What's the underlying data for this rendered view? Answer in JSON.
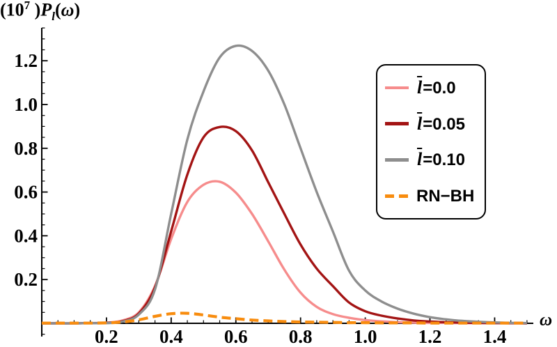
{
  "title": {
    "p1": "(10",
    "sup": "7",
    "p2": " )",
    "P": "P",
    "sub": "l",
    "p3": "(",
    "omega": "ω",
    "p4": ")"
  },
  "axes": {
    "x_label": "ω",
    "x_ticks": [
      {
        "v": 0.2,
        "label": "0.2"
      },
      {
        "v": 0.4,
        "label": "0.4"
      },
      {
        "v": 0.6,
        "label": "0.6"
      },
      {
        "v": 0.8,
        "label": "0.8"
      },
      {
        "v": 1.0,
        "label": "1.0"
      },
      {
        "v": 1.2,
        "label": "1.2"
      },
      {
        "v": 1.4,
        "label": "1.4"
      }
    ],
    "y_ticks": [
      {
        "v": 0.2,
        "label": "0.2"
      },
      {
        "v": 0.4,
        "label": "0.4"
      },
      {
        "v": 0.6,
        "label": "0.6"
      },
      {
        "v": 0.8,
        "label": "0.8"
      },
      {
        "v": 1.0,
        "label": "1.0"
      },
      {
        "v": 1.2,
        "label": "1.2"
      }
    ],
    "axis_color": "#000000"
  },
  "legend": {
    "items": [
      {
        "series_index": 0,
        "var": "l",
        "rest": "=0.0"
      },
      {
        "series_index": 1,
        "var": "l",
        "rest": "=0.05"
      },
      {
        "series_index": 2,
        "var": "l",
        "rest": "=0.10"
      },
      {
        "series_index": 3,
        "var": "",
        "rest": "RN−BH"
      }
    ]
  },
  "chart_data": {
    "type": "line",
    "title": "(10^7) P_l(ω)",
    "xlabel": "ω",
    "ylabel": "(10^7) P_l(ω)",
    "xlim": [
      0,
      1.52
    ],
    "ylim": [
      0,
      1.35
    ],
    "grid": false,
    "legend_position": "upper right",
    "x": [
      0.0,
      0.05,
      0.1,
      0.15,
      0.2,
      0.25,
      0.3,
      0.35,
      0.4,
      0.45,
      0.5,
      0.55,
      0.6,
      0.65,
      0.7,
      0.75,
      0.8,
      0.85,
      0.9,
      0.95,
      1.0,
      1.05,
      1.1,
      1.15,
      1.2,
      1.25,
      1.3,
      1.35,
      1.4,
      1.45,
      1.5
    ],
    "series": [
      {
        "name": "l̄=0.0",
        "color": "#F68C8C",
        "style": "solid",
        "peak": {
          "x": 0.53,
          "y": 0.65
        },
        "values": [
          0,
          0,
          0,
          0.001,
          0.003,
          0.013,
          0.05,
          0.17,
          0.385,
          0.555,
          0.633,
          0.647,
          0.597,
          0.5,
          0.375,
          0.245,
          0.14,
          0.075,
          0.042,
          0.025,
          0.015,
          0.009,
          0.005,
          0.003,
          0.002,
          0.002,
          0.001,
          0.001,
          0.001,
          0,
          0
        ]
      },
      {
        "name": "l̄=0.05",
        "color": "#A31414",
        "style": "solid",
        "peak": {
          "x": 0.565,
          "y": 0.9
        },
        "values": [
          0,
          0,
          0,
          0.001,
          0.002,
          0.01,
          0.045,
          0.165,
          0.42,
          0.68,
          0.85,
          0.897,
          0.878,
          0.79,
          0.645,
          0.5,
          0.36,
          0.25,
          0.17,
          0.095,
          0.055,
          0.035,
          0.022,
          0.013,
          0.008,
          0.005,
          0.003,
          0.002,
          0.001,
          0.001,
          0
        ]
      },
      {
        "name": "l̄=0.10",
        "color": "#8E8E8E",
        "style": "solid",
        "peak": {
          "x": 0.61,
          "y": 1.27
        },
        "values": [
          0,
          0,
          0,
          0.001,
          0.001,
          0.008,
          0.04,
          0.155,
          0.5,
          0.84,
          1.06,
          1.215,
          1.268,
          1.245,
          1.155,
          1.0,
          0.8,
          0.6,
          0.42,
          0.24,
          0.15,
          0.1,
          0.067,
          0.044,
          0.028,
          0.018,
          0.011,
          0.007,
          0.004,
          0.002,
          0.001
        ]
      },
      {
        "name": "RN−BH",
        "color": "#F88C0E",
        "style": "dashed",
        "peak": {
          "x": 0.43,
          "y": 0.046
        },
        "values": [
          0.001,
          0.001,
          0.001,
          0.001,
          0.002,
          0.006,
          0.016,
          0.032,
          0.044,
          0.046,
          0.038,
          0.028,
          0.021,
          0.015,
          0.011,
          0.008,
          0.006,
          0.005,
          0.004,
          0.003,
          0.003,
          0.002,
          0.002,
          0.002,
          0.001,
          0.001,
          0.001,
          0.001,
          0.001,
          0.001,
          0.001
        ]
      }
    ]
  }
}
